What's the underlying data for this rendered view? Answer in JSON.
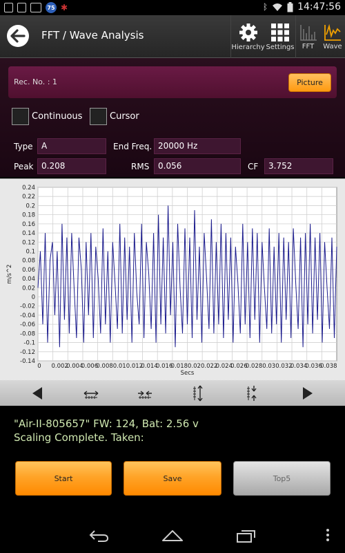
{
  "status_bar": {
    "badge": "75",
    "time": "14:47:56",
    "icons": [
      "notification-icon",
      "sim-icon",
      "image-icon",
      "badge-icon",
      "app-icon",
      "bluetooth-icon",
      "wifi-icon",
      "battery-icon"
    ]
  },
  "action_bar": {
    "title": "FFT / Wave Analysis",
    "tools": {
      "hierarchy": "Hierarchy",
      "settings": "Settings",
      "fft": "FFT",
      "wave": "Wave"
    }
  },
  "record": {
    "label": "Rec. No. : 1",
    "picture_button": "Picture"
  },
  "options": {
    "continuous": "Continuous",
    "cursor": "Cursor"
  },
  "fields": {
    "type_label": "Type",
    "type_value": "A",
    "end_freq_label": "End Freq.",
    "end_freq_value": "20000 Hz",
    "peak_label": "Peak",
    "peak_value": "0.208",
    "rms_label": "RMS",
    "rms_value": "0.056",
    "cf_label": "CF",
    "cf_value": "3.752"
  },
  "chart_data": {
    "type": "line",
    "xlabel": "Secs",
    "ylabel": "m/s^2",
    "xlim": [
      0,
      0.04
    ],
    "ylim": [
      -0.14,
      0.24
    ],
    "x_ticks": [
      "0",
      "0.002",
      "0.004",
      "0.006",
      "0.008",
      "0.01",
      "0.012",
      "0.014",
      "0.016",
      "0.018",
      "0.02",
      "0.022",
      "0.024",
      "0.026",
      "0.028",
      "0.03",
      "0.032",
      "0.034",
      "0.036",
      "0.038"
    ],
    "y_ticks": [
      "0.24",
      "0.22",
      "0.2",
      "0.18",
      "0.16",
      "0.14",
      "0.12",
      "0.1",
      "0.08",
      "0.06",
      "0.04",
      "0.02",
      "0",
      "-0.02",
      "-0.04",
      "-0.06",
      "-0.08",
      "-0.1",
      "-0.12",
      "-0.14"
    ],
    "grid": true,
    "line_color": "#1a1a8c",
    "series": [
      {
        "values": [
          0.02,
          0.1,
          -0.06,
          0.14,
          -0.1,
          0.08,
          0.12,
          -0.04,
          0.1,
          -0.11,
          0.16,
          -0.05,
          0.13,
          -0.08,
          0.14,
          0.02,
          -0.09,
          0.13,
          0.06,
          -0.1,
          0.12,
          -0.04,
          0.14,
          -0.09,
          0.11,
          0.04,
          -0.08,
          0.15,
          -0.06,
          0.1,
          -0.1,
          0.12,
          0.03,
          -0.07,
          0.16,
          -0.08,
          0.13,
          -0.05,
          0.11,
          -0.1,
          0.14,
          0.01,
          -0.06,
          0.16,
          -0.09,
          0.12,
          0.05,
          -0.07,
          0.14,
          -0.1,
          0.18,
          -0.06,
          0.13,
          -0.08,
          0.2,
          -0.04,
          0.12,
          -0.11,
          0.16,
          0.02,
          -0.08,
          0.15,
          -0.06,
          0.13,
          -0.09,
          0.19,
          -0.05,
          0.11,
          -0.1,
          0.14,
          0.04,
          -0.07,
          0.17,
          -0.08,
          0.12,
          -0.06,
          0.16,
          -0.09,
          0.14,
          -0.05,
          0.13,
          -0.1,
          0.11,
          0.03,
          -0.08,
          0.16,
          -0.06,
          0.12,
          -0.09,
          0.15,
          -0.05,
          0.14,
          -0.1,
          0.12,
          0.02,
          -0.07,
          0.15,
          -0.08,
          0.11,
          -0.06,
          0.14,
          -0.1,
          0.13,
          -0.05,
          0.12,
          -0.09,
          0.15,
          0.03,
          -0.07,
          0.13,
          -0.11,
          0.14,
          -0.06,
          0.16,
          -0.08,
          0.13,
          -0.05,
          0.14,
          -0.1,
          0.12,
          0.02,
          -0.07,
          0.13,
          -0.09,
          0.11
        ]
      }
    ]
  },
  "nav_controls": [
    "previous-icon",
    "zoom-in-horizontal-icon",
    "zoom-out-horizontal-icon",
    "zoom-in-vertical-icon",
    "zoom-out-vertical-icon",
    "next-icon"
  ],
  "message": {
    "line1": "\"Air-II-805657\" FW: 124, Bat: 2.56 v",
    "line2": "Scaling Complete. Taken:"
  },
  "buttons": {
    "start": "Start",
    "save": "Save",
    "top5": "Top5"
  },
  "colors": {
    "accent_orange": "#ff9a10",
    "panel_magenta": "#6a1a45",
    "message_green": "#cfe8b0",
    "wave_blue": "#1a1a8c"
  }
}
